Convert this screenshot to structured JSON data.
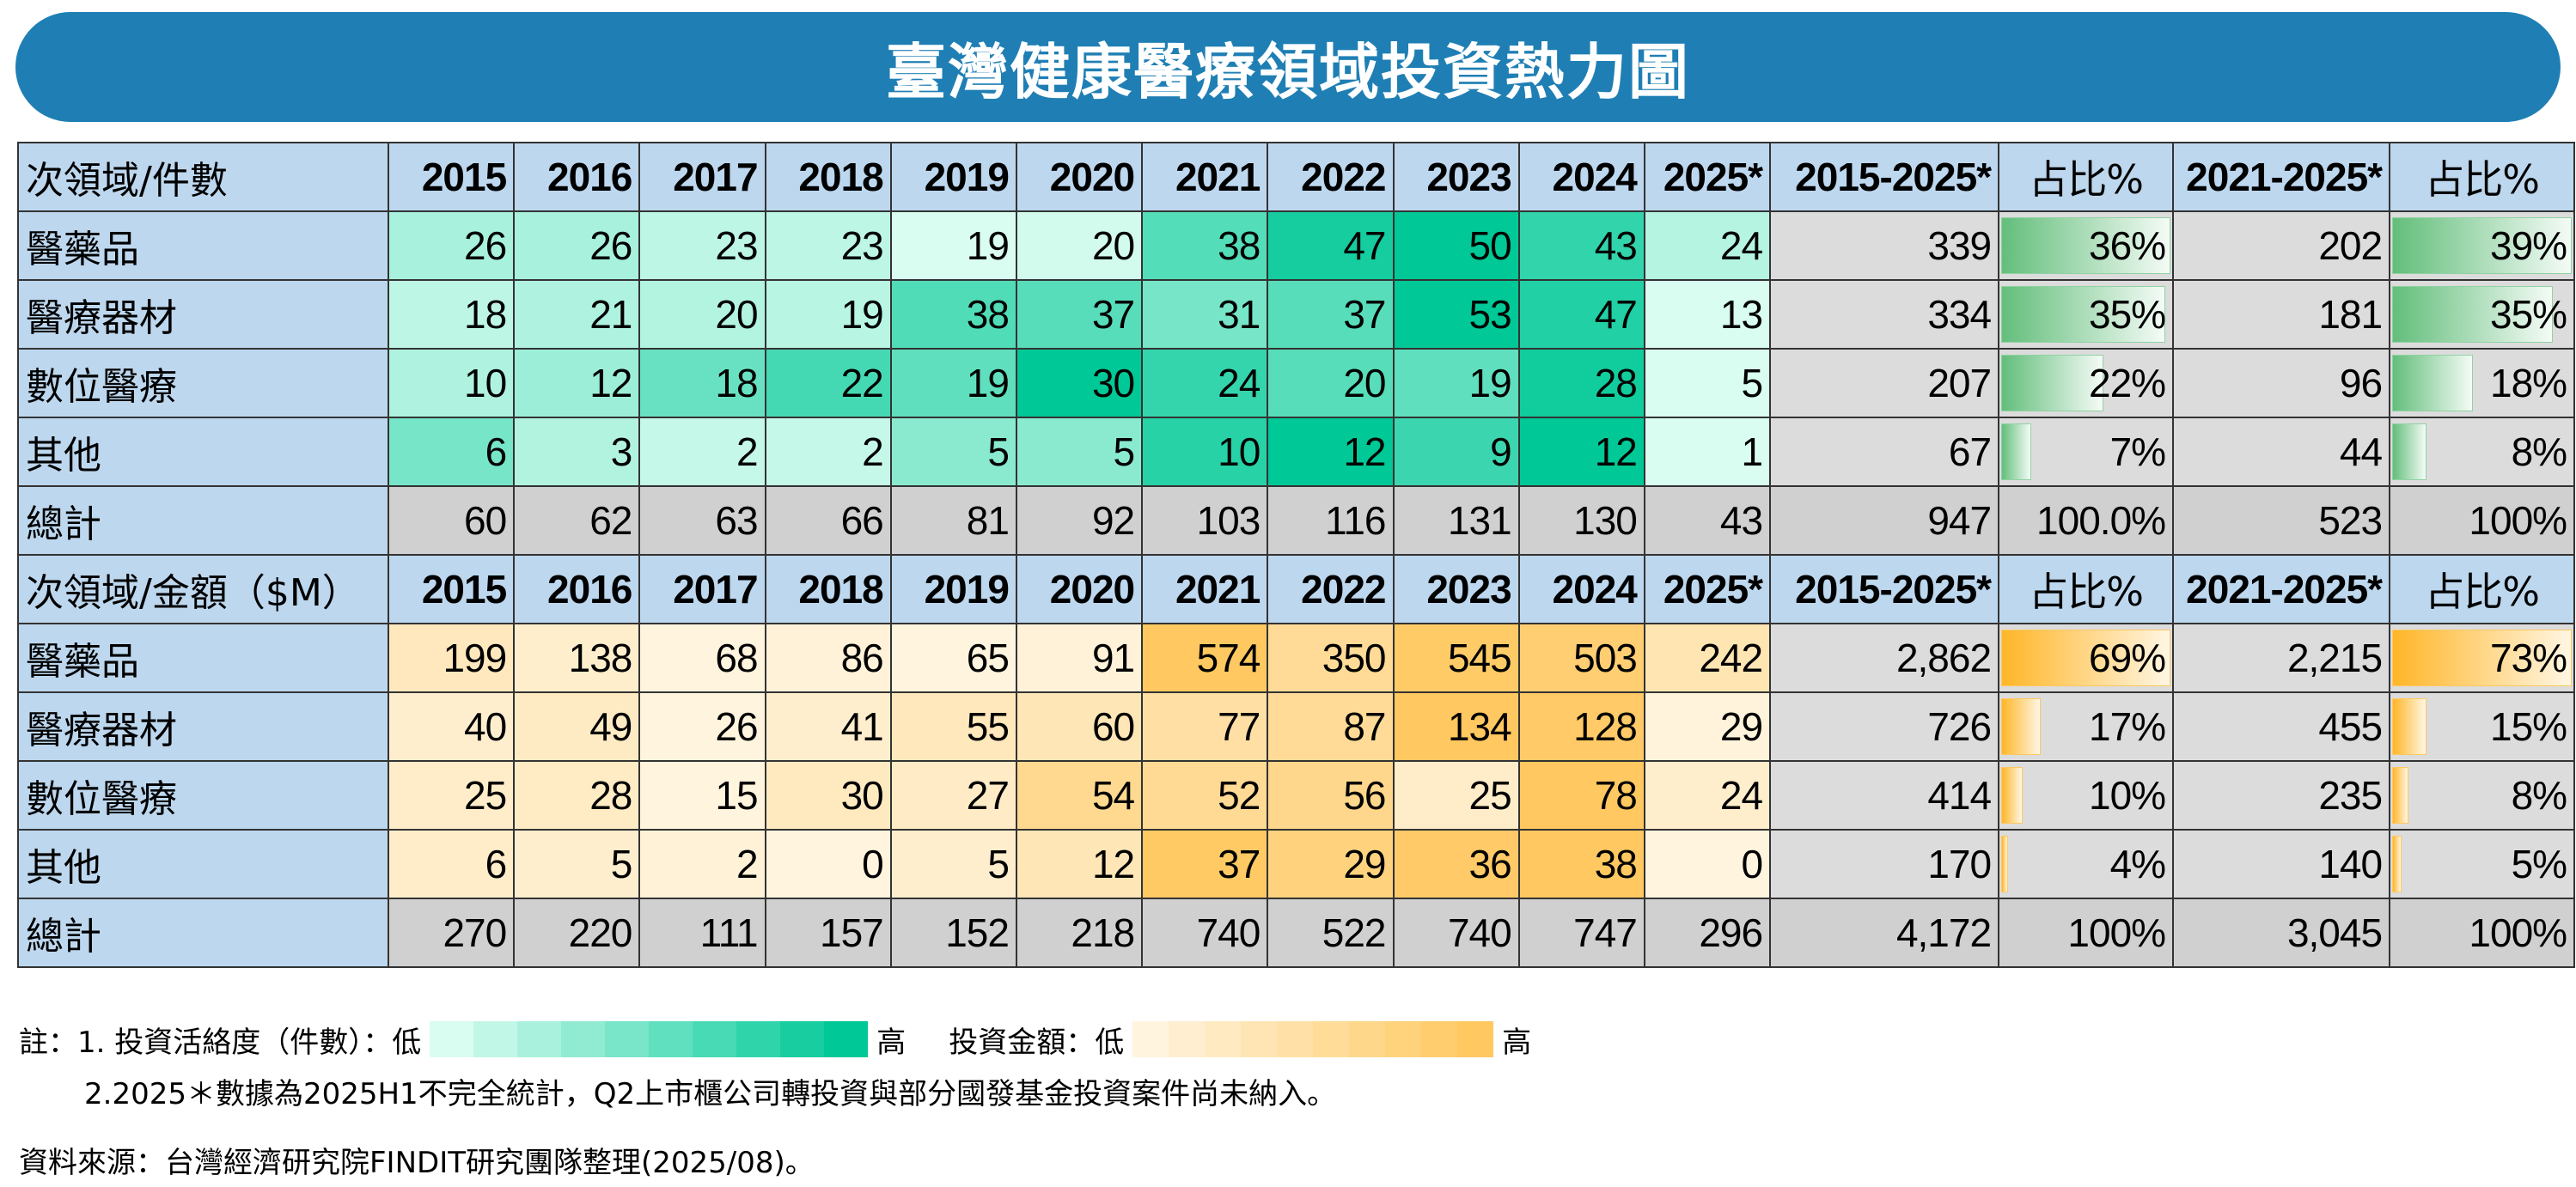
{
  "title": "臺灣健康醫療領域投資熱力圖",
  "colors": {
    "header": "#bdd7ee",
    "green_low": "#d9fdf1",
    "green_high": "#00c896",
    "orange_low": "#fff4de",
    "orange_high": "#ffc860",
    "title_bg": "#1f7fb4"
  },
  "chart_data": [
    {
      "type": "heatmap",
      "title": "投資活絡度（件數）",
      "corner_label": "次領域/件數",
      "columns": [
        "2015",
        "2016",
        "2017",
        "2018",
        "2019",
        "2020",
        "2021",
        "2022",
        "2023",
        "2024",
        "2025*"
      ],
      "summary_headers": [
        "2015-2025*",
        "占比%",
        "2021-2025*",
        "占比%"
      ],
      "scale": "green",
      "rows": [
        {
          "name": "醫藥品",
          "values": [
            26,
            26,
            23,
            23,
            19,
            20,
            38,
            47,
            50,
            43,
            24
          ],
          "total": "339",
          "share": "36%",
          "share_value": 36,
          "recent": "202",
          "recent_share": "39%",
          "recent_share_value": 39
        },
        {
          "name": "醫療器材",
          "values": [
            18,
            21,
            20,
            19,
            38,
            37,
            31,
            37,
            53,
            47,
            13
          ],
          "total": "334",
          "share": "35%",
          "share_value": 35,
          "recent": "181",
          "recent_share": "35%",
          "recent_share_value": 35
        },
        {
          "name": "數位醫療",
          "values": [
            10,
            12,
            18,
            22,
            19,
            30,
            24,
            20,
            19,
            28,
            5
          ],
          "total": "207",
          "share": "22%",
          "share_value": 22,
          "recent": "96",
          "recent_share": "18%",
          "recent_share_value": 18
        },
        {
          "name": "其他",
          "values": [
            6,
            3,
            2,
            2,
            5,
            5,
            10,
            12,
            9,
            12,
            1
          ],
          "total": "67",
          "share": "7%",
          "share_value": 7,
          "recent": "44",
          "recent_share": "8%",
          "recent_share_value": 8
        }
      ],
      "total_row": {
        "name": "總計",
        "values": [
          "60",
          "62",
          "63",
          "66",
          "81",
          "92",
          "103",
          "116",
          "131",
          "130",
          "43"
        ],
        "total": "947",
        "share": "100.0%",
        "recent": "523",
        "recent_share": "100%"
      }
    },
    {
      "type": "heatmap",
      "title": "投資金額（$M）",
      "corner_label": "次領域/金額（$M）",
      "columns": [
        "2015",
        "2016",
        "2017",
        "2018",
        "2019",
        "2020",
        "2021",
        "2022",
        "2023",
        "2024",
        "2025*"
      ],
      "summary_headers": [
        "2015-2025*",
        "占比%",
        "2021-2025*",
        "占比%"
      ],
      "scale": "orange",
      "rows": [
        {
          "name": "醫藥品",
          "values": [
            199,
            138,
            68,
            86,
            65,
            91,
            574,
            350,
            545,
            503,
            242
          ],
          "total": "2,862",
          "share": "69%",
          "share_value": 69,
          "recent": "2,215",
          "recent_share": "73%",
          "recent_share_value": 73
        },
        {
          "name": "醫療器材",
          "values": [
            40,
            49,
            26,
            41,
            55,
            60,
            77,
            87,
            134,
            128,
            29
          ],
          "total": "726",
          "share": "17%",
          "share_value": 17,
          "recent": "455",
          "recent_share": "15%",
          "recent_share_value": 15
        },
        {
          "name": "數位醫療",
          "values": [
            25,
            28,
            15,
            30,
            27,
            54,
            52,
            56,
            25,
            78,
            24
          ],
          "total": "414",
          "share": "10%",
          "share_value": 10,
          "recent": "235",
          "recent_share": "8%",
          "recent_share_value": 8
        },
        {
          "name": "其他",
          "values": [
            6,
            5,
            2,
            0,
            5,
            12,
            37,
            29,
            36,
            38,
            0
          ],
          "total": "170",
          "share": "4%",
          "share_value": 4,
          "recent": "140",
          "recent_share": "5%",
          "recent_share_value": 5
        }
      ],
      "total_row": {
        "name": "總計",
        "values": [
          "270",
          "220",
          "111",
          "157",
          "152",
          "218",
          "740",
          "522",
          "740",
          "747",
          "296"
        ],
        "total": "4,172",
        "share": "100%",
        "recent": "3,045",
        "recent_share": "100%"
      }
    }
  ],
  "notes": {
    "note1_prefix": "註：1. 投資活絡度（件數）：低",
    "high": "高",
    "amount_label": "投資金額：低",
    "high2": "高",
    "note2": "2.2025＊數據為2025H1不完全統計，Q2上市櫃公司轉投資與部分國發基金投資案件尚未納入。",
    "source": "資料來源：台灣經濟研究院FINDIT研究團隊整理(2025/08)。"
  }
}
